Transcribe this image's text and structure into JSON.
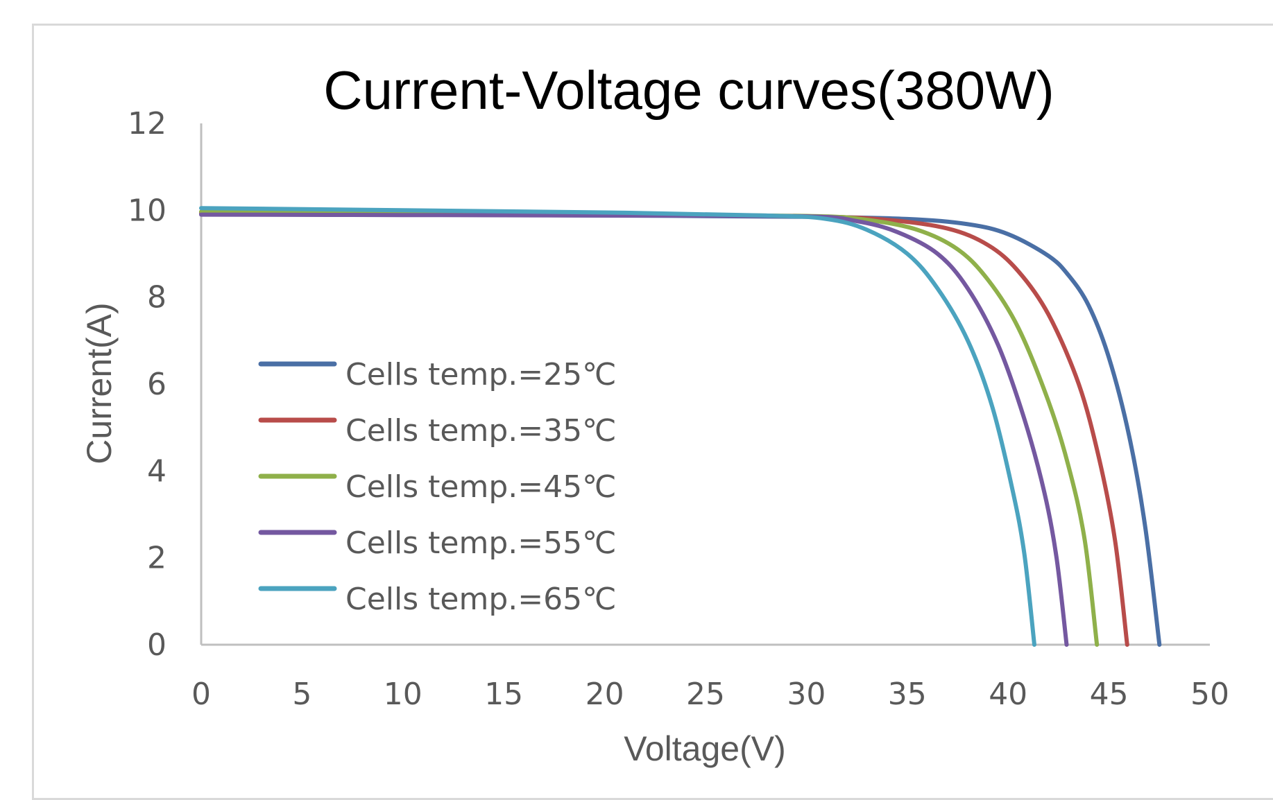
{
  "chart_data": {
    "type": "line",
    "title": "Current-Voltage curves(380W)",
    "xlabel": "Voltage(V)",
    "ylabel": "Current(A)",
    "xlim": [
      0,
      50
    ],
    "ylim": [
      0,
      12
    ],
    "x_ticks": [
      "0",
      "5",
      "10",
      "15",
      "20",
      "25",
      "30",
      "35",
      "40",
      "45",
      "50"
    ],
    "y_ticks": [
      "0",
      "2",
      "4",
      "6",
      "8",
      "10",
      "12"
    ],
    "grid": false,
    "legend_position": "inside-left",
    "series": [
      {
        "name": "Cells temp.=25℃",
        "color": "#4a6fa5",
        "points": [
          [
            0,
            9.92
          ],
          [
            10,
            9.9
          ],
          [
            20,
            9.88
          ],
          [
            30,
            9.85
          ],
          [
            35,
            9.8
          ],
          [
            38,
            9.68
          ],
          [
            40,
            9.45
          ],
          [
            42,
            8.95
          ],
          [
            43,
            8.5
          ],
          [
            44,
            7.8
          ],
          [
            45,
            6.6
          ],
          [
            46,
            4.8
          ],
          [
            46.8,
            2.7
          ],
          [
            47.5,
            0
          ]
        ]
      },
      {
        "name": "Cells temp.=35℃",
        "color": "#b84c4a",
        "points": [
          [
            0,
            9.95
          ],
          [
            10,
            9.92
          ],
          [
            20,
            9.9
          ],
          [
            30,
            9.86
          ],
          [
            34,
            9.78
          ],
          [
            37,
            9.58
          ],
          [
            39,
            9.2
          ],
          [
            40.5,
            8.6
          ],
          [
            42,
            7.6
          ],
          [
            43.5,
            6.0
          ],
          [
            44.5,
            4.3
          ],
          [
            45.3,
            2.4
          ],
          [
            45.9,
            0
          ]
        ]
      },
      {
        "name": "Cells temp.=45℃",
        "color": "#8fb04a",
        "points": [
          [
            0,
            9.97
          ],
          [
            10,
            9.94
          ],
          [
            20,
            9.91
          ],
          [
            30,
            9.87
          ],
          [
            33,
            9.78
          ],
          [
            35.5,
            9.55
          ],
          [
            37.5,
            9.1
          ],
          [
            39,
            8.4
          ],
          [
            40.5,
            7.3
          ],
          [
            42,
            5.6
          ],
          [
            43,
            4.1
          ],
          [
            43.8,
            2.4
          ],
          [
            44.4,
            0
          ]
        ]
      },
      {
        "name": "Cells temp.=55℃",
        "color": "#7458a0",
        "points": [
          [
            0,
            9.9
          ],
          [
            10,
            9.89
          ],
          [
            20,
            9.88
          ],
          [
            30,
            9.86
          ],
          [
            32.5,
            9.75
          ],
          [
            34.5,
            9.5
          ],
          [
            36.5,
            9.0
          ],
          [
            38,
            8.2
          ],
          [
            39.5,
            6.9
          ],
          [
            40.8,
            5.2
          ],
          [
            41.8,
            3.5
          ],
          [
            42.4,
            2.0
          ],
          [
            42.9,
            0
          ]
        ]
      },
      {
        "name": "Cells temp.=65℃",
        "color": "#4ba3bf",
        "points": [
          [
            0,
            10.05
          ],
          [
            10,
            10.0
          ],
          [
            20,
            9.95
          ],
          [
            28,
            9.88
          ],
          [
            31,
            9.8
          ],
          [
            33,
            9.55
          ],
          [
            35,
            9.0
          ],
          [
            36.5,
            8.2
          ],
          [
            38,
            7.0
          ],
          [
            39.2,
            5.5
          ],
          [
            40.2,
            3.6
          ],
          [
            40.8,
            2.1
          ],
          [
            41.3,
            0
          ]
        ]
      }
    ]
  }
}
